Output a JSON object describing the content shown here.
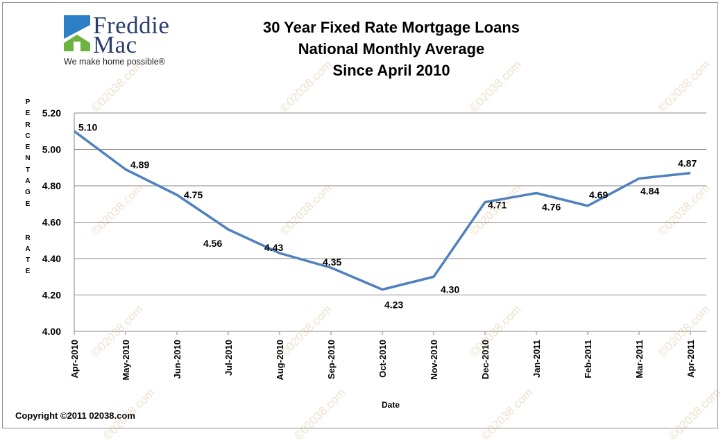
{
  "logo": {
    "brand_line1": "Freddie",
    "brand_line2": "Mac",
    "tagline": "We make home possible®",
    "colors": {
      "roof": "#2b7fc4",
      "house": "#6db33f",
      "text": "#2a3d6e"
    }
  },
  "title_lines": [
    "30 Year Fixed Rate Mortgage Loans",
    "National Monthly Average",
    "Since April 2010"
  ],
  "copyright": "Copyright  ©2011 02038.com",
  "watermark_text": "©02038.com",
  "chart_data": {
    "type": "line",
    "title": "30 Year Fixed Rate Mortgage Loans National Monthly Average Since April 2010",
    "xlabel": "Date",
    "ylabel": "PERCENTAGE RATE",
    "ylabel_letters": [
      "P",
      "E",
      "R",
      "C",
      "E",
      "N",
      "T",
      "A",
      "G",
      "E",
      "",
      "",
      "R",
      "A",
      "T",
      "E"
    ],
    "ylim": [
      4.0,
      5.2
    ],
    "yticks": [
      "4.00",
      "4.20",
      "4.40",
      "4.60",
      "4.80",
      "5.00",
      "5.20"
    ],
    "grid": true,
    "legend": "none",
    "line_color": "#4f81bd",
    "categories": [
      "Apr-2010",
      "May-2010",
      "Jun-2010",
      "Jul-2010",
      "Aug-2010",
      "Sep-2010",
      "Oct-2010",
      "Nov-2010",
      "Dec-2010",
      "Jan-2011",
      "Feb-2011",
      "Mar-2011",
      "Apr-2011"
    ],
    "series": [
      {
        "values": [
          5.1,
          4.89,
          4.75,
          4.56,
          4.43,
          4.35,
          4.23,
          4.3,
          4.71,
          4.76,
          4.69,
          4.84,
          4.87
        ],
        "labels": [
          "5.10",
          "4.89",
          "4.75",
          "4.56",
          "4.43",
          "4.35",
          "4.23",
          "4.30",
          "4.71",
          "4.76",
          "4.69",
          "4.84",
          "4.87"
        ]
      }
    ]
  }
}
